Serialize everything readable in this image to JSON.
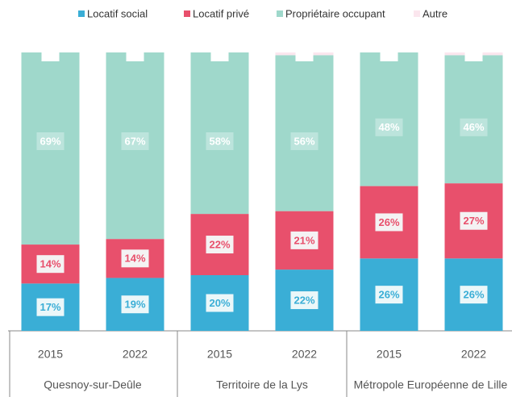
{
  "chart_data": {
    "type": "stacked_bar",
    "categories": [
      "2015",
      "2022",
      "2015",
      "2022",
      "2015",
      "2022"
    ],
    "groups": [
      "Quesnoy-sur-Deûle",
      "Territoire de la Lys",
      "Métropole Européenne de Lille"
    ],
    "series": [
      {
        "name": "Locatif social",
        "color": "#3aaed6",
        "values": [
          17,
          19,
          20,
          22,
          26,
          26
        ],
        "value_labels": [
          "17%",
          "19%",
          "20%",
          "22%",
          "26%",
          "26%"
        ]
      },
      {
        "name": "Locatif privé",
        "color": "#e8506c",
        "values": [
          14,
          14,
          22,
          21,
          26,
          27
        ],
        "value_labels": [
          "14%",
          "14%",
          "22%",
          "21%",
          "26%",
          "27%"
        ]
      },
      {
        "name": "Propriétaire occupant",
        "color": "#9fd8cb",
        "values": [
          69,
          67,
          58,
          56,
          48,
          46
        ],
        "value_labels": [
          "69%",
          "67%",
          "58%",
          "56%",
          "48%",
          "46%"
        ]
      },
      {
        "name": "Autre",
        "color": "#fbe6ee",
        "values": [
          0,
          0,
          0,
          1,
          0,
          1
        ]
      }
    ],
    "ylim": [
      0,
      100
    ],
    "legend": "top"
  }
}
